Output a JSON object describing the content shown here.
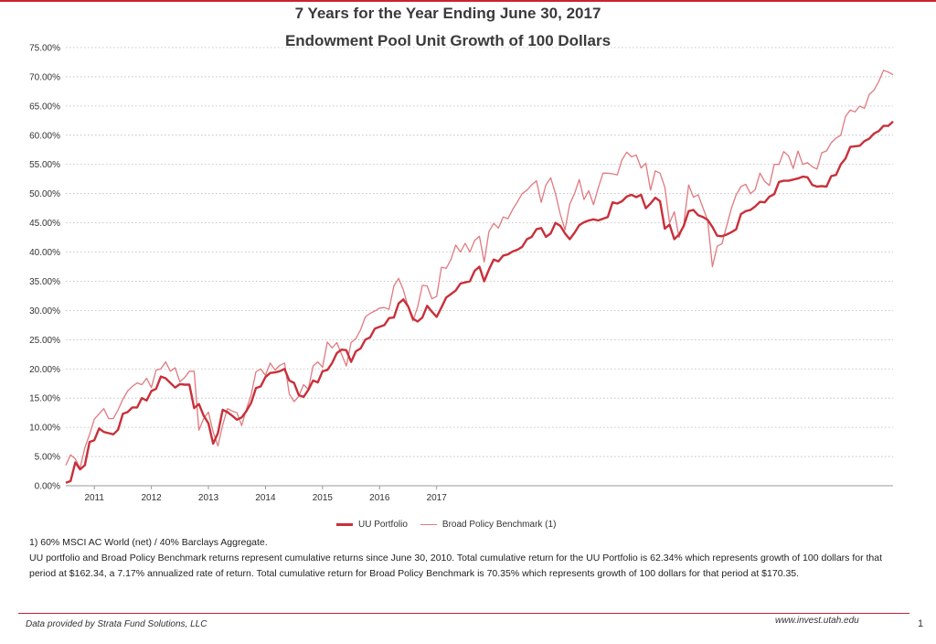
{
  "chart_data": {
    "type": "line",
    "title": "7 Years for the Year Ending June 30, 2017",
    "subtitle": "Endowment Pool Unit Growth of 100 Dollars",
    "ylim": [
      0,
      75
    ],
    "y_ticks": [
      "0.00%",
      "5.00%",
      "10.00%",
      "15.00%",
      "20.00%",
      "25.00%",
      "30.00%",
      "35.00%",
      "40.00%",
      "45.00%",
      "50.00%",
      "55.00%",
      "60.00%",
      "65.00%",
      "70.00%",
      "75.00%"
    ],
    "x_ticks": [
      "2011",
      "2012",
      "2013",
      "2014",
      "2015",
      "2016",
      "2017"
    ],
    "x_range": [
      "2010-07",
      "2017-06"
    ],
    "grid": true,
    "legend_position": "bottom",
    "series": [
      {
        "name": "UU Portfolio",
        "color": "#c8303a",
        "width": "thick",
        "values": [
          0.5,
          0.8,
          4.0,
          2.8,
          3.5,
          7.5,
          7.8,
          9.8,
          9.2,
          9.0,
          8.8,
          9.6,
          12.3,
          12.6,
          13.4,
          13.4,
          15.0,
          14.6,
          16.2,
          16.6,
          18.7,
          18.4,
          17.6,
          16.8,
          17.4,
          17.3,
          17.3,
          13.3,
          14.0,
          12.0,
          10.7,
          7.2,
          9.0,
          13.0,
          12.6,
          12.0,
          11.3,
          11.7,
          12.8,
          14.2,
          16.7,
          17.0,
          18.6,
          19.3,
          19.4,
          19.6,
          20.0,
          18.0,
          17.6,
          15.5,
          15.2,
          16.4,
          18.0,
          17.7,
          19.6,
          19.8,
          21.0,
          22.7,
          23.3,
          23.2,
          21.2,
          23.0,
          23.5,
          25.0,
          25.4,
          26.9,
          27.2,
          27.5,
          28.7,
          28.8,
          31.2,
          31.9,
          30.7,
          28.6,
          28.1,
          28.8,
          30.8,
          29.8,
          28.9,
          30.5,
          32.2,
          32.8,
          33.4,
          34.6,
          34.8,
          35.0,
          36.8,
          37.5,
          35.0,
          37.0,
          38.7,
          38.4,
          39.4,
          39.6,
          40.1,
          40.4,
          40.9,
          42.2,
          42.6,
          43.9,
          44.1,
          42.6,
          43.2,
          45.0,
          44.5,
          43.2,
          42.2,
          43.3,
          44.6,
          45.1,
          45.4,
          45.6,
          45.4,
          45.7,
          46.0,
          48.5,
          48.3,
          48.7,
          49.5,
          49.8,
          49.4,
          49.8,
          47.5,
          48.3,
          49.3,
          48.7,
          44.0,
          44.7,
          42.2,
          43.0,
          44.5,
          47.0,
          47.2,
          46.3,
          46.0,
          45.5,
          44.3,
          42.8,
          42.7,
          43.0,
          43.4,
          43.9,
          46.5,
          47.0,
          47.2,
          47.8,
          48.6,
          48.5,
          49.5,
          49.9,
          52.0,
          52.2,
          52.2,
          52.4,
          52.6,
          52.9,
          52.8,
          51.5,
          51.2,
          51.3,
          51.2,
          53.0,
          53.2,
          55.0,
          56.0,
          58.0,
          58.1,
          58.2,
          59.0,
          59.4,
          60.3,
          60.7,
          61.6,
          61.6,
          62.34
        ]
      },
      {
        "name": "Broad Policy Benchmark (1)",
        "color": "#e07a80",
        "width": "thin",
        "values": [
          3.5,
          5.3,
          4.6,
          3.0,
          6.5,
          8.8,
          11.4,
          12.3,
          13.2,
          11.5,
          11.5,
          13.0,
          14.8,
          16.2,
          17.0,
          17.6,
          17.3,
          18.4,
          16.8,
          19.8,
          20.0,
          21.2,
          19.6,
          20.2,
          17.8,
          18.5,
          19.6,
          19.6,
          9.5,
          11.5,
          12.6,
          9.2,
          6.8,
          10.4,
          13.2,
          12.8,
          12.5,
          10.3,
          13.1,
          15.6,
          19.5,
          20.0,
          18.9,
          21.0,
          19.8,
          20.6,
          21.0,
          15.7,
          14.4,
          15.3,
          17.3,
          16.5,
          20.5,
          21.2,
          20.3,
          24.6,
          23.6,
          24.5,
          22.5,
          20.5,
          24.5,
          25.2,
          26.7,
          28.9,
          29.5,
          29.9,
          30.4,
          30.5,
          30.2,
          34.2,
          35.5,
          33.5,
          30.6,
          28.2,
          30.6,
          34.3,
          34.2,
          32.0,
          32.4,
          37.4,
          37.2,
          38.7,
          41.2,
          40.0,
          41.5,
          40.0,
          42.0,
          42.7,
          38.3,
          43.5,
          44.9,
          44.1,
          46.0,
          45.7,
          47.3,
          48.6,
          50.0,
          50.6,
          51.5,
          52.2,
          48.5,
          51.5,
          52.7,
          50.0,
          46.5,
          43.8,
          48.2,
          50.0,
          52.4,
          49.0,
          50.5,
          48.1,
          51.0,
          53.5,
          53.5,
          53.4,
          53.2,
          55.8,
          57.1,
          56.3,
          56.6,
          54.4,
          55.2,
          50.6,
          53.9,
          53.5,
          51.1,
          45.0,
          46.9,
          42.5,
          44.8,
          51.5,
          49.4,
          49.8,
          47.6,
          45.4,
          37.5,
          41.0,
          41.4,
          44.5,
          47.5,
          49.8,
          51.2,
          51.6,
          50.0,
          50.7,
          53.5,
          52.1,
          51.4,
          55.0,
          55.0,
          57.2,
          56.5,
          54.3,
          57.3,
          55.0,
          55.3,
          54.6,
          54.2,
          57.0,
          57.3,
          58.7,
          59.5,
          60.0,
          63.2,
          64.3,
          64.0,
          65.0,
          64.6,
          67.0,
          67.7,
          69.2,
          71.1,
          70.8,
          70.35
        ]
      }
    ]
  },
  "legend": {
    "uu": "UU Portfolio",
    "bench": "Broad Policy Benchmark (1)"
  },
  "notes": {
    "footnote": "1) 60% MSCI AC World (net) / 40% Barclays Aggregate.",
    "description": "UU portfolio and Broad Policy Benchmark returns represent cumulative returns since June 30, 2010. Total cumulative return for the UU Portfolio is 62.34% which represents growth of 100 dollars for that period at $162.34, a 7.17% annualized rate of return.  Total cumulative return for Broad Policy Benchmark is 70.35% which represents growth of 100 dollars for that period at $170.35."
  },
  "footer": {
    "source": "Data provided by Strata Fund Solutions, LLC",
    "url": "www.invest.utah.edu",
    "page": "1"
  }
}
